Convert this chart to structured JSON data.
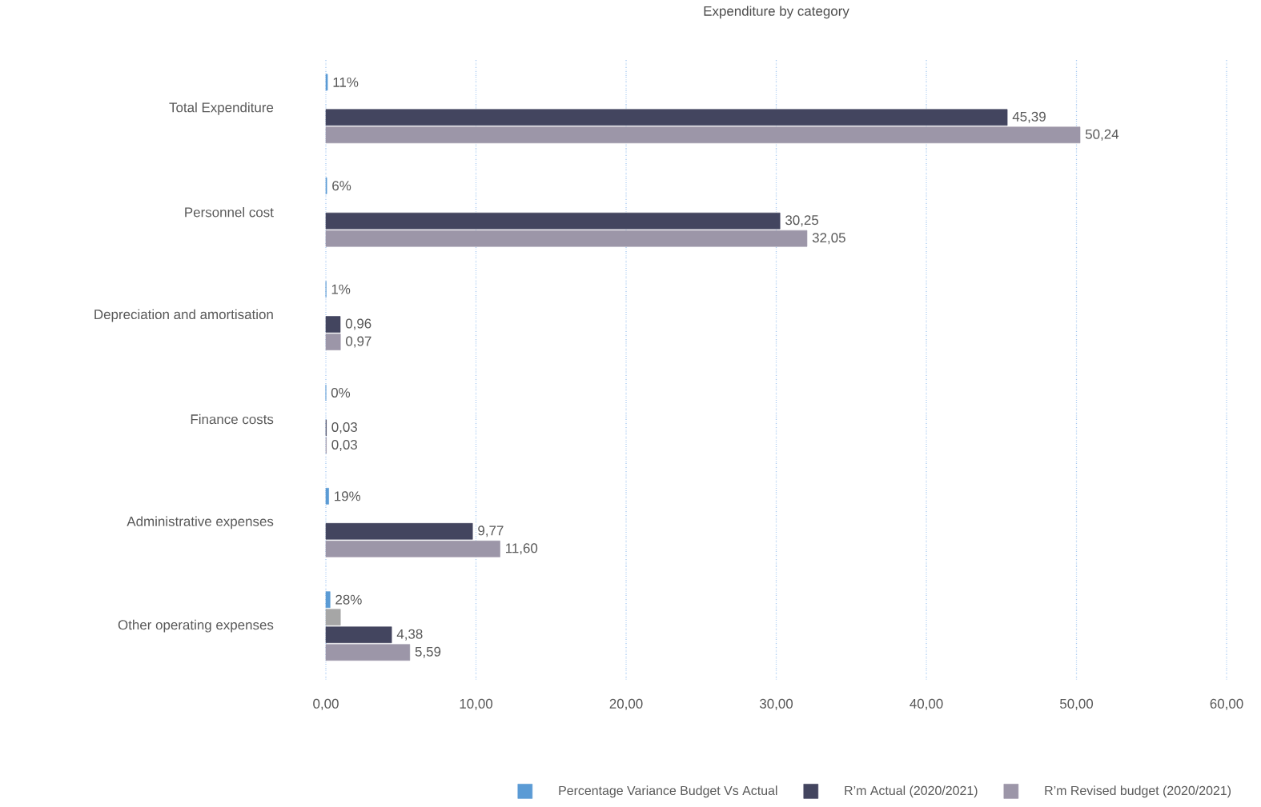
{
  "chart_data": {
    "type": "bar",
    "orientation": "horizontal",
    "title": "Expenditure by category",
    "categories": [
      "Total Expenditure",
      "Personnel cost",
      "Depreciation and amortisation",
      "Finance costs",
      "Administrative expenses",
      "Other operating expenses"
    ],
    "series": [
      {
        "name": "Percentage Variance Budget Vs Actual",
        "color": "#5b9bd5",
        "values": [
          0.11,
          0.06,
          0.01,
          0,
          0.19,
          0.28
        ],
        "value_labels": [
          "11%",
          "6%",
          "1%",
          "0%",
          "19%",
          "28%"
        ]
      },
      {
        "color": "#a6a6a6",
        "values": [
          null,
          null,
          null,
          null,
          null,
          0.97
        ]
      },
      {
        "name": "R’m Actual (2020/2021)",
        "color": "#43455f",
        "values": [
          45.39,
          30.25,
          0.96,
          0.03,
          9.77,
          4.38
        ],
        "value_labels": [
          "45,39",
          "30,25",
          "0,96",
          "0,03",
          "9,77",
          "4,38"
        ]
      },
      {
        "name": "R’m Revised budget (2020/2021)",
        "color": "#9c96a8",
        "values": [
          50.24,
          32.05,
          0.97,
          0.03,
          11.6,
          5.59
        ],
        "value_labels": [
          "50,24",
          "32,05",
          "0,97",
          "0,03",
          "11,60",
          "5,59"
        ]
      }
    ],
    "xlim": [
      0,
      60
    ],
    "xticks": [
      {
        "value": 0,
        "label": "0,00"
      },
      {
        "value": 10,
        "label": "10,00"
      },
      {
        "value": 20,
        "label": "20,00"
      },
      {
        "value": 30,
        "label": "30,00"
      },
      {
        "value": 40,
        "label": "40,00"
      },
      {
        "value": 50,
        "label": "50,00"
      },
      {
        "value": 60,
        "label": "60,00"
      }
    ],
    "grid": "x",
    "legend": "bottom"
  }
}
